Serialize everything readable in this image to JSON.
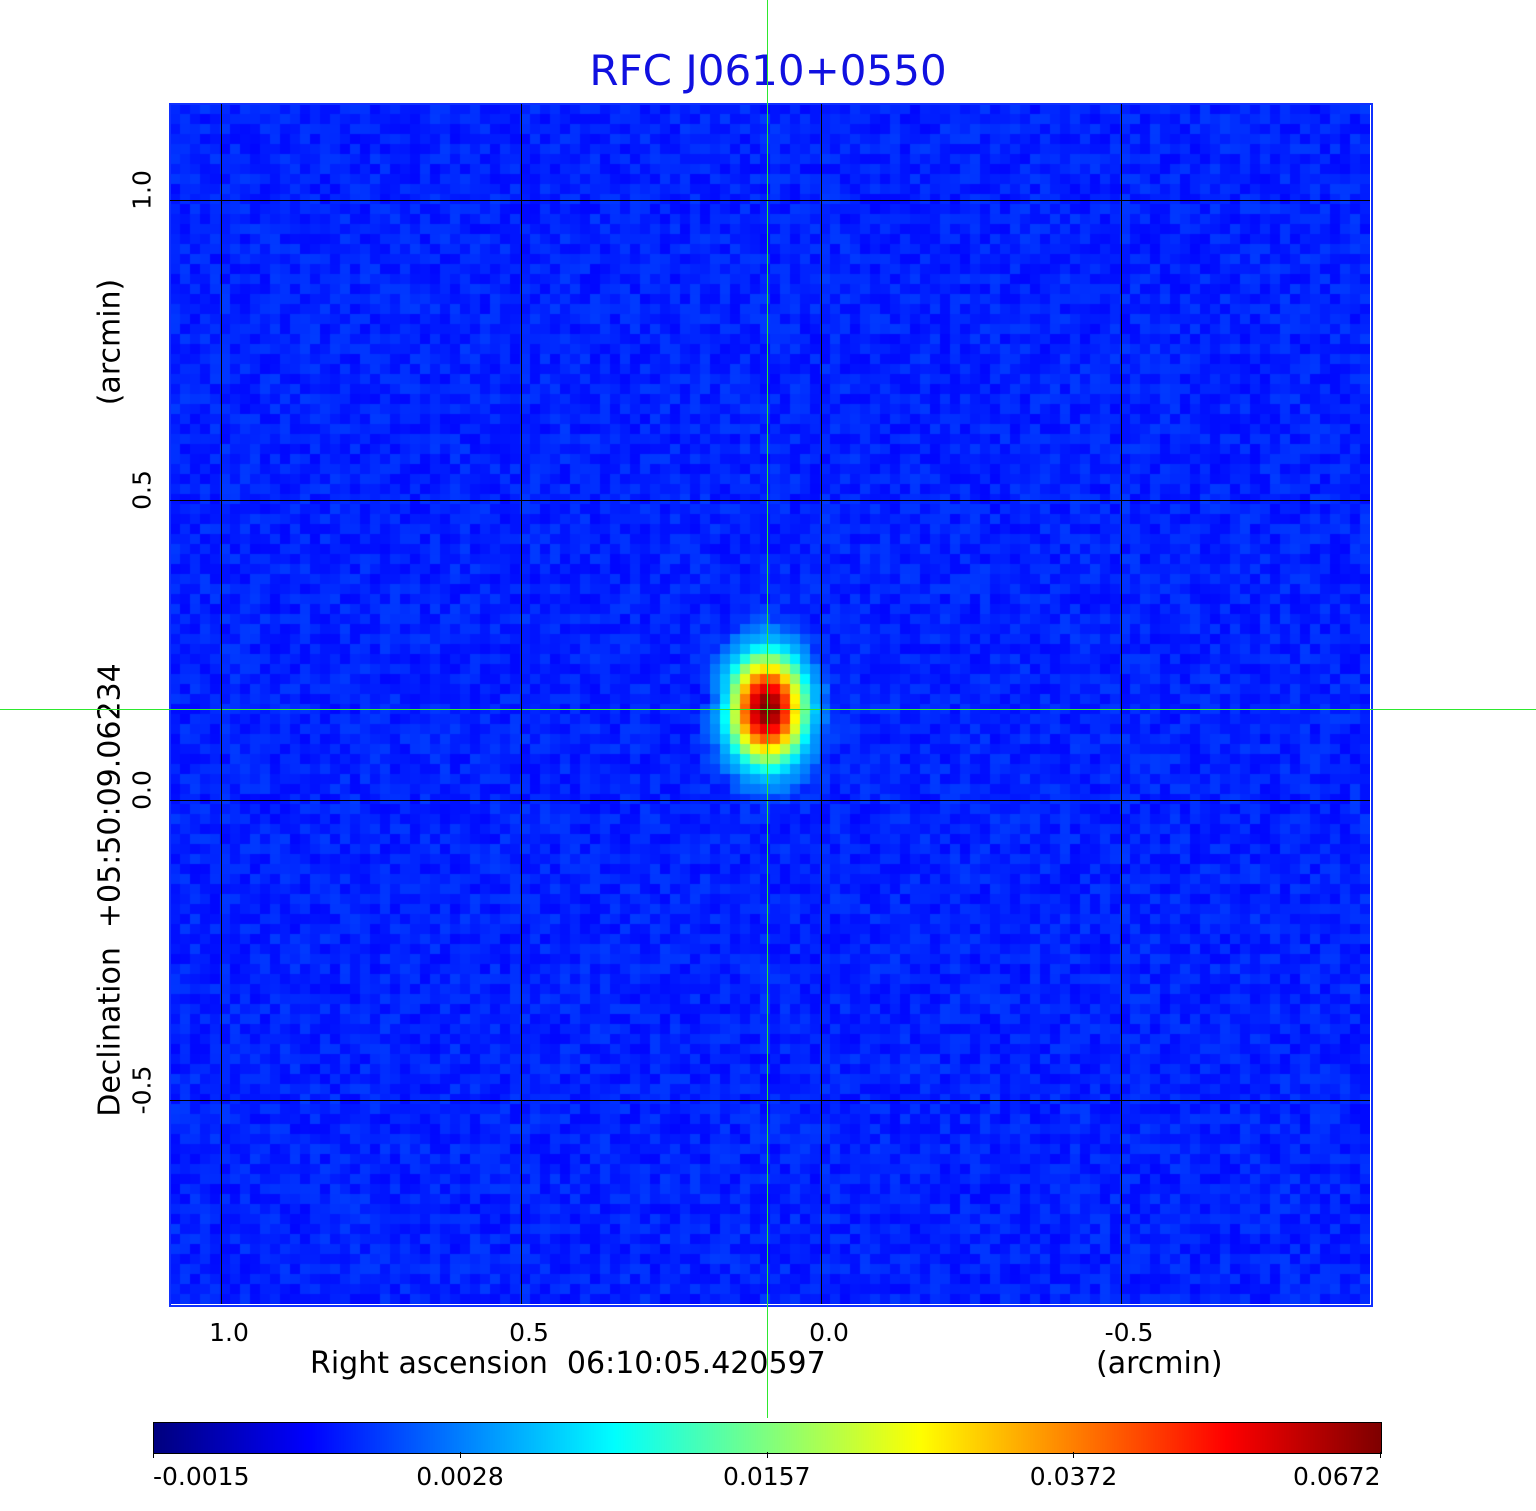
{
  "chart_data": {
    "type": "heatmap",
    "title": "RFC J0610+0550",
    "xlabel": "Right ascension  06:10:05.420597",
    "xunit": "(arcmin)",
    "ylabel": "Declination  +05:50:09.06234",
    "yunit": "(arcmin)",
    "xlim": [
      1.085,
      -0.915
    ],
    "ylim": [
      -0.84,
      1.16
    ],
    "xticks": [
      {
        "v": 1.0,
        "label": "1.0"
      },
      {
        "v": 0.5,
        "label": "0.5"
      },
      {
        "v": 0.0,
        "label": "0.0"
      },
      {
        "v": -0.5,
        "label": "-0.5"
      }
    ],
    "yticks": [
      {
        "v": 1.0,
        "label": "1.0"
      },
      {
        "v": 0.5,
        "label": "0.5"
      },
      {
        "v": 0.0,
        "label": "0.0"
      },
      {
        "v": -0.5,
        "label": "-0.5"
      }
    ],
    "grid": true,
    "colormap": "jet",
    "colorbar": {
      "placement": "bottom",
      "ticks": [
        "-0.0015",
        "0.0028",
        "0.0157",
        "0.0372",
        "0.0672"
      ],
      "values": [
        -0.0015,
        0.0028,
        0.0157,
        0.0372,
        0.0672
      ]
    },
    "crosshair": [
      0.09,
      0.152
    ],
    "source": {
      "x": 0.09,
      "y": 0.152,
      "peak": 0.0672
    },
    "background_level": 0.0012,
    "pixels_per_side": 120
  }
}
